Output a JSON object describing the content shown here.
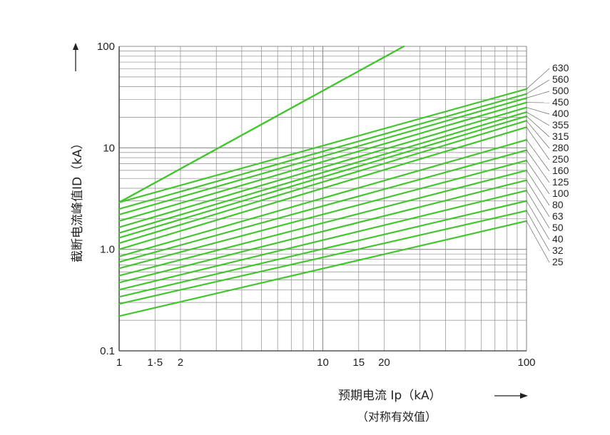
{
  "chart_data": {
    "type": "line",
    "x_scale": "log",
    "y_scale": "log",
    "xlim": [
      1,
      100
    ],
    "ylim": [
      0.1,
      100
    ],
    "x_tick_labels": [
      {
        "v": 1,
        "t": "1"
      },
      {
        "v": 1.5,
        "t": "1·5"
      },
      {
        "v": 2,
        "t": "2"
      },
      {
        "v": 10,
        "t": "10"
      },
      {
        "v": 15,
        "t": "15"
      },
      {
        "v": 20,
        "t": "20"
      },
      {
        "v": 100,
        "t": "100"
      }
    ],
    "y_tick_labels": [
      {
        "v": 0.1,
        "t": "0.1"
      },
      {
        "v": 1,
        "t": "1.0"
      },
      {
        "v": 10,
        "t": "10"
      },
      {
        "v": 100,
        "t": "100"
      }
    ],
    "xlabel": "预期电流 Ip（kA）",
    "xlabel_sub": "（对称有效值）",
    "ylabel": "截断电流峰值ID（kA）",
    "grid": true,
    "line_color": "#44c530",
    "envelope": {
      "x": [
        1,
        25
      ],
      "y": [
        2.9,
        100
      ]
    },
    "series": [
      {
        "name": "630",
        "x": [
          1,
          100
        ],
        "y": [
          2.9,
          38
        ]
      },
      {
        "name": "560",
        "x": [
          1,
          100
        ],
        "y": [
          2.5,
          34
        ]
      },
      {
        "name": "500",
        "x": [
          1,
          100
        ],
        "y": [
          2.2,
          31
        ]
      },
      {
        "name": "450",
        "x": [
          1,
          100
        ],
        "y": [
          1.9,
          28
        ]
      },
      {
        "name": "400",
        "x": [
          1,
          100
        ],
        "y": [
          1.65,
          25
        ]
      },
      {
        "name": "355",
        "x": [
          1,
          100
        ],
        "y": [
          1.45,
          22.5
        ]
      },
      {
        "name": "315",
        "x": [
          1,
          100
        ],
        "y": [
          1.3,
          20.5
        ]
      },
      {
        "name": "280",
        "x": [
          1,
          100
        ],
        "y": [
          1.15,
          18.5
        ]
      },
      {
        "name": "250",
        "x": [
          1,
          100
        ],
        "y": [
          1.0,
          16
        ]
      },
      {
        "name": "160",
        "x": [
          1,
          100
        ],
        "y": [
          0.85,
          12
        ]
      },
      {
        "name": "125",
        "x": [
          1,
          100
        ],
        "y": [
          0.75,
          9.5
        ]
      },
      {
        "name": "100",
        "x": [
          1,
          100
        ],
        "y": [
          0.65,
          7.5
        ]
      },
      {
        "name": "80",
        "x": [
          1,
          100
        ],
        "y": [
          0.55,
          6.0
        ]
      },
      {
        "name": "63",
        "x": [
          1,
          100
        ],
        "y": [
          0.47,
          4.8
        ]
      },
      {
        "name": "50",
        "x": [
          1,
          100
        ],
        "y": [
          0.4,
          3.8
        ]
      },
      {
        "name": "40",
        "x": [
          1,
          100
        ],
        "y": [
          0.34,
          3.0
        ]
      },
      {
        "name": "32",
        "x": [
          1,
          100
        ],
        "y": [
          0.29,
          2.4
        ]
      },
      {
        "name": "25",
        "x": [
          1,
          100
        ],
        "y": [
          0.22,
          1.9
        ]
      }
    ],
    "right_labels_top": 100,
    "right_labels_step": 16
  }
}
